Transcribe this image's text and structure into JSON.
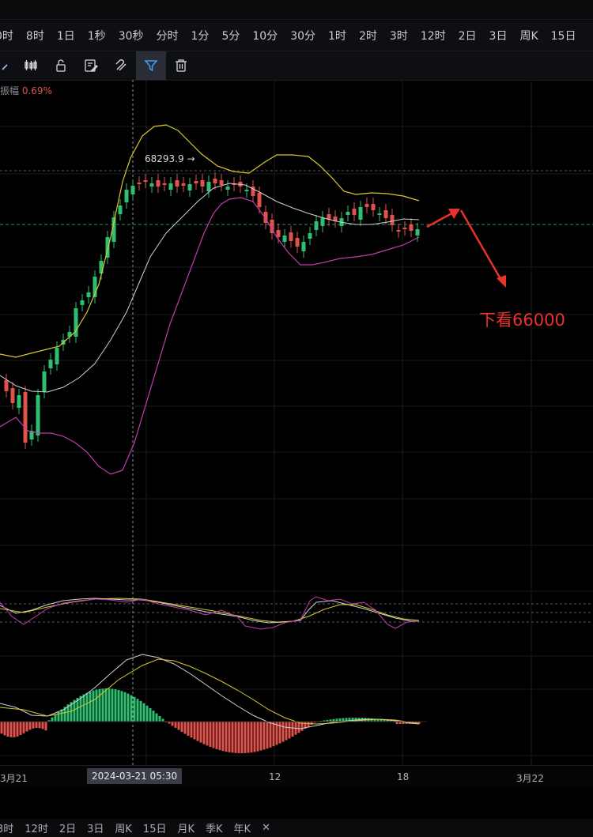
{
  "intervals_top": [
    "0时",
    "8时",
    "1日",
    "1秒",
    "30秒",
    "分时",
    "1分",
    "5分",
    "10分",
    "30分",
    "1时",
    "2时",
    "3时",
    "12时",
    "2日",
    "3日",
    "周K",
    "15日"
  ],
  "toolbar": {
    "tools": [
      {
        "name": "pen-tool-icon",
        "icon": "pen"
      },
      {
        "name": "candles-icon",
        "icon": "candles"
      },
      {
        "name": "lock-icon",
        "icon": "lock"
      },
      {
        "name": "edit-icon",
        "icon": "edit"
      },
      {
        "name": "magnet-icon",
        "icon": "magnet"
      },
      {
        "name": "filter-icon",
        "icon": "filter"
      },
      {
        "name": "trash-icon",
        "icon": "trash"
      }
    ]
  },
  "info": {
    "label": "振幅",
    "value": "0.69%"
  },
  "price_flag": "68293.9 →",
  "annotation": "下看66000",
  "date_axis": {
    "labels": [
      "3月21",
      "12",
      "18",
      "3月22"
    ],
    "cursor_label": "2024-03-21 05:30"
  },
  "intervals_bottom": [
    "3时",
    "12时",
    "2日",
    "3日",
    "周K",
    "15日",
    "月K",
    "季K",
    "年K",
    "✕"
  ],
  "colors": {
    "up": "#2fbf71",
    "down": "#e0524a",
    "boll_upper": "#d9c82e",
    "boll_mid": "#cfd1d6",
    "boll_lower": "#c23cb0",
    "annotation": "#e8322a"
  }
}
